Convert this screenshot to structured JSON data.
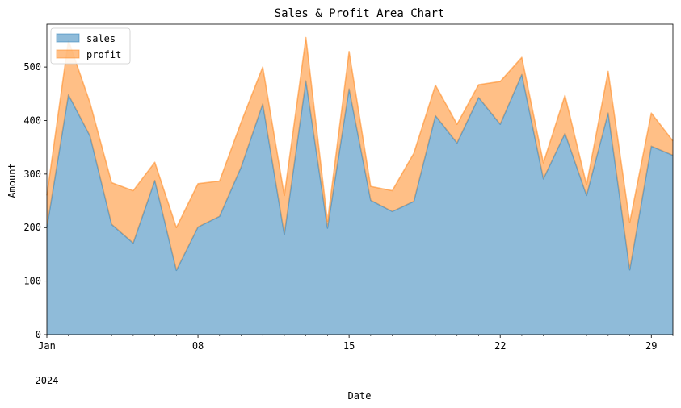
{
  "chart_data": {
    "type": "area",
    "stacked": true,
    "title": "Sales & Profit Area Chart",
    "xlabel": "Date",
    "ylabel": "Amount",
    "x": [
      "2024-01-01",
      "2024-01-02",
      "2024-01-03",
      "2024-01-04",
      "2024-01-05",
      "2024-01-06",
      "2024-01-07",
      "2024-01-08",
      "2024-01-09",
      "2024-01-10",
      "2024-01-11",
      "2024-01-12",
      "2024-01-13",
      "2024-01-14",
      "2024-01-15",
      "2024-01-16",
      "2024-01-17",
      "2024-01-18",
      "2024-01-19",
      "2024-01-20",
      "2024-01-21",
      "2024-01-22",
      "2024-01-23",
      "2024-01-24",
      "2024-01-25",
      "2024-01-26",
      "2024-01-27",
      "2024-01-28",
      "2024-01-29",
      "2024-01-30"
    ],
    "series": [
      {
        "name": "sales",
        "color": "#1f77b4",
        "values": [
          200,
          448,
          371,
          206,
          171,
          288,
          120,
          201,
          221,
          313,
          431,
          187,
          474,
          199,
          459,
          251,
          230,
          249,
          409,
          358,
          443,
          393,
          486,
          291,
          376,
          260,
          414,
          121,
          352,
          335
        ]
      },
      {
        "name": "profit",
        "color": "#ff7f0e",
        "values": [
          60,
          102,
          62,
          78,
          98,
          34,
          80,
          81,
          66,
          84,
          69,
          73,
          81,
          13,
          70,
          26,
          39,
          90,
          57,
          35,
          24,
          80,
          32,
          30,
          71,
          20,
          78,
          89,
          62,
          27
        ]
      }
    ],
    "ylim": [
      0,
      580
    ],
    "yticks": [
      "0",
      "100",
      "200",
      "300",
      "400",
      "500"
    ],
    "xticks": [
      {
        "date": "2024-01-01",
        "label": "Jan",
        "sublabel": "2024"
      },
      {
        "date": "2024-01-08",
        "label": "08"
      },
      {
        "date": "2024-01-15",
        "label": "15"
      },
      {
        "date": "2024-01-22",
        "label": "22"
      },
      {
        "date": "2024-01-29",
        "label": "29"
      }
    ],
    "legend": {
      "position": "top-left",
      "entries": [
        "sales",
        "profit"
      ]
    },
    "grid": false
  }
}
